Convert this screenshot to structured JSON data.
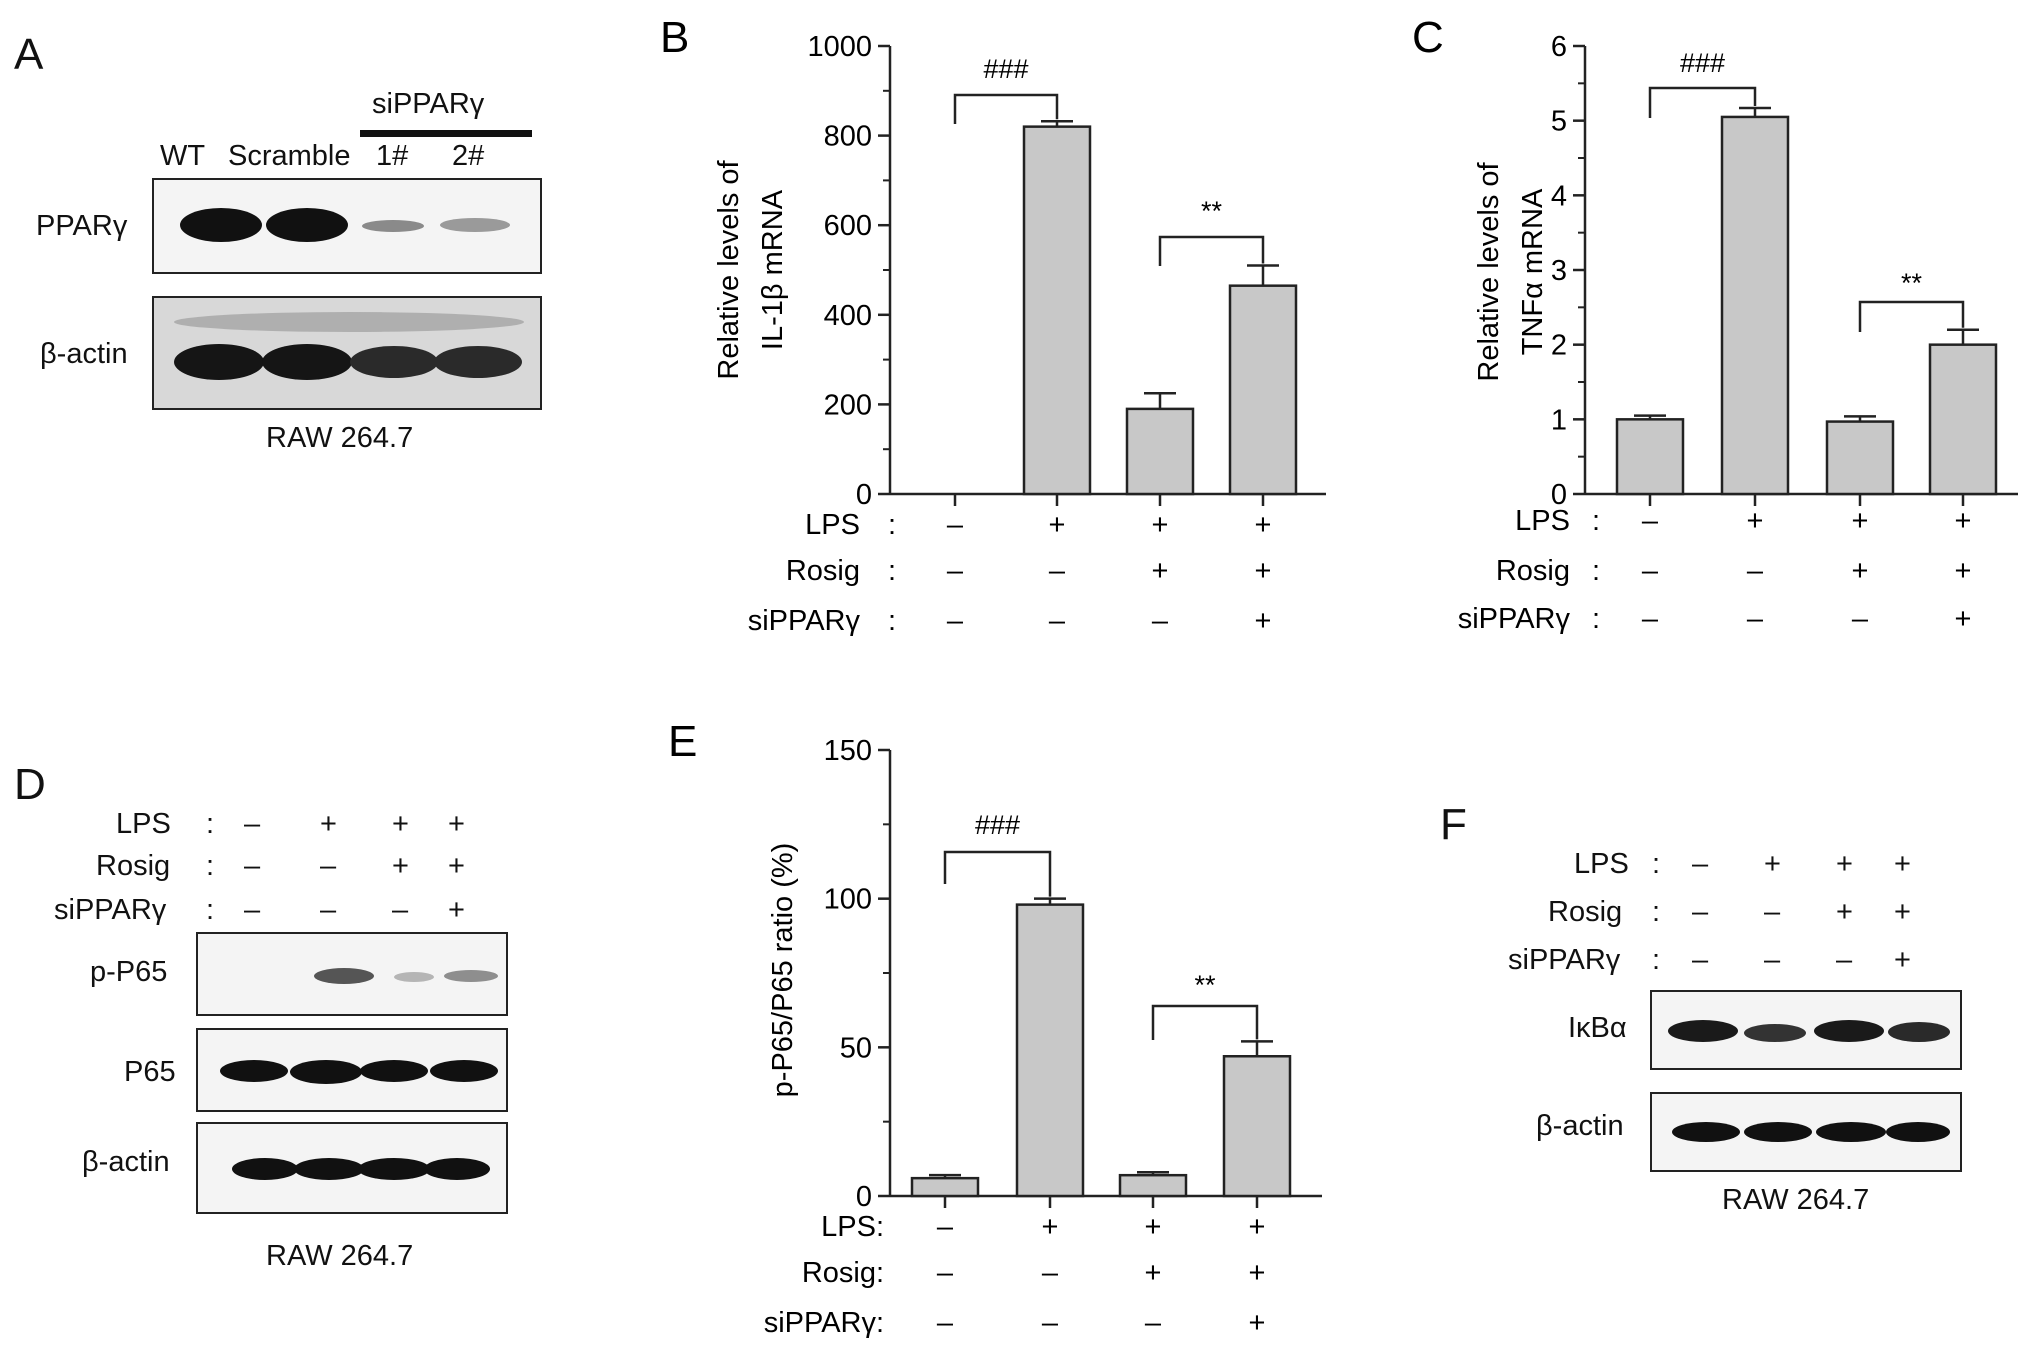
{
  "panels": {
    "A": {
      "letter": "A",
      "group_label": "siPPARγ",
      "lanes": [
        "WT",
        "Scramble",
        "1#",
        "2#"
      ],
      "rows": [
        "PPARγ",
        "β-actin"
      ],
      "cell_line": "RAW 264.7"
    },
    "D": {
      "letter": "D",
      "treatments": [
        {
          "label": "LPS",
          "colon": ":",
          "signs": [
            "–",
            "+",
            "+",
            "+"
          ]
        },
        {
          "label": "Rosig",
          "colon": ":",
          "signs": [
            "–",
            "–",
            "+",
            "+"
          ]
        },
        {
          "label": "siPPARγ",
          "colon": ":",
          "signs": [
            "–",
            "–",
            "–",
            "+"
          ]
        }
      ],
      "rows": [
        "p-P65",
        "P65",
        "β-actin"
      ],
      "cell_line": "RAW 264.7"
    },
    "F": {
      "letter": "F",
      "treatments": [
        {
          "label": "LPS",
          "colon": ":",
          "signs": [
            "–",
            "+",
            "+",
            "+"
          ]
        },
        {
          "label": "Rosig",
          "colon": ":",
          "signs": [
            "–",
            "–",
            "+",
            "+"
          ]
        },
        {
          "label": "siPPARγ",
          "colon": ":",
          "signs": [
            "–",
            "–",
            "–",
            "+"
          ]
        }
      ],
      "rows": [
        "IκBα",
        "β-actin"
      ],
      "cell_line": "RAW 264.7"
    }
  },
  "chart_data": [
    {
      "panel": "B",
      "type": "bar",
      "ylabel_lines": [
        "Relative levels of",
        "IL-1β mRNA"
      ],
      "ylim": [
        0,
        1000
      ],
      "yticks": [
        0,
        200,
        400,
        600,
        800,
        1000
      ],
      "values": [
        0,
        820,
        190,
        465
      ],
      "errors": [
        0,
        12,
        35,
        45
      ],
      "treatments": [
        {
          "label": "LPS",
          "colon": ":",
          "signs": [
            "–",
            "+",
            "+",
            "+"
          ]
        },
        {
          "label": "Rosig",
          "colon": ":",
          "signs": [
            "–",
            "–",
            "+",
            "+"
          ]
        },
        {
          "label": "siPPARγ",
          "colon": ":",
          "signs": [
            "–",
            "–",
            "–",
            "+"
          ]
        }
      ],
      "annotations": [
        {
          "text": "###",
          "from": 0,
          "to": 1
        },
        {
          "text": "**",
          "from": 2,
          "to": 3
        }
      ]
    },
    {
      "panel": "C",
      "type": "bar",
      "ylabel_lines": [
        "Relative levels of",
        "TNFα mRNA"
      ],
      "ylim": [
        0,
        6
      ],
      "yticks": [
        0,
        1,
        2,
        3,
        4,
        5,
        6
      ],
      "values": [
        1.0,
        5.05,
        0.97,
        2.0
      ],
      "errors": [
        0.05,
        0.12,
        0.07,
        0.2
      ],
      "treatments": [
        {
          "label": "LPS",
          "colon": ":",
          "signs": [
            "–",
            "+",
            "+",
            "+"
          ]
        },
        {
          "label": "Rosig",
          "colon": ":",
          "signs": [
            "–",
            "–",
            "+",
            "+"
          ]
        },
        {
          "label": "siPPARγ",
          "colon": ":",
          "signs": [
            "–",
            "–",
            "–",
            "+"
          ]
        }
      ],
      "annotations": [
        {
          "text": "###",
          "from": 0,
          "to": 1
        },
        {
          "text": "**",
          "from": 2,
          "to": 3
        }
      ]
    },
    {
      "panel": "E",
      "type": "bar",
      "ylabel_lines": [
        "p-P65/P65 ratio (%)"
      ],
      "ylim": [
        0,
        150
      ],
      "yticks": [
        0,
        50,
        100,
        150
      ],
      "values": [
        6,
        98,
        7,
        47
      ],
      "errors": [
        1,
        2,
        1,
        5
      ],
      "treatments": [
        {
          "label": "LPS",
          "colon": ":",
          "signs": [
            "–",
            "+",
            "+",
            "+"
          ]
        },
        {
          "label": "Rosig",
          "colon": ":",
          "signs": [
            "–",
            "–",
            "+",
            "+"
          ]
        },
        {
          "label": "siPPARγ",
          "colon": ":",
          "signs": [
            "–",
            "–",
            "–",
            "+"
          ]
        }
      ],
      "annotations": [
        {
          "text": "###",
          "from": 0,
          "to": 1
        },
        {
          "text": "**",
          "from": 2,
          "to": 3
        }
      ]
    }
  ]
}
